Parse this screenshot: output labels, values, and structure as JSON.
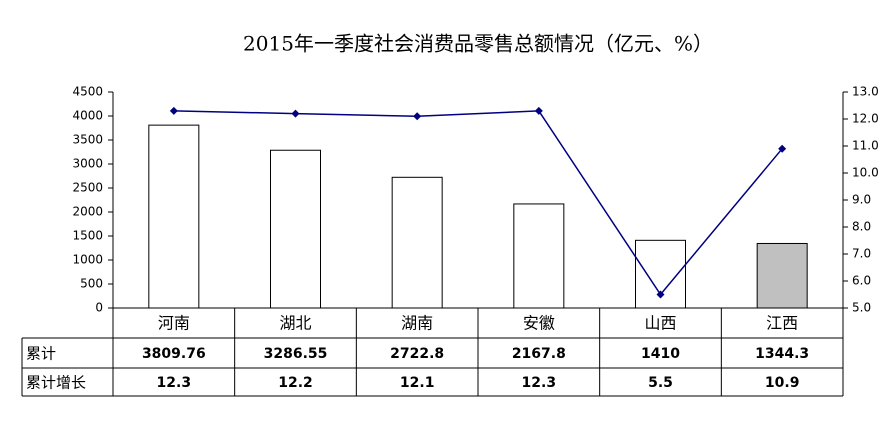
{
  "chart_data": {
    "type": "bar_line_table",
    "title": "2015年一季度社会消费品零售总额情况（亿元、%）",
    "categories": [
      "河南",
      "湖北",
      "湖南",
      "安徽",
      "山西",
      "江西"
    ],
    "series": [
      {
        "name": "累计",
        "type": "bar",
        "color": "#ffffff",
        "colors": [
          "#ffffff",
          "#ffffff",
          "#ffffff",
          "#ffffff",
          "#ffffff",
          "#c0c0c0"
        ],
        "values": [
          3809.76,
          3286.55,
          2722.8,
          2167.8,
          1410,
          1344.3
        ]
      },
      {
        "name": "累计增长",
        "type": "line",
        "axis": "y2",
        "color": "#000080",
        "values": [
          12.3,
          12.2,
          12.1,
          12.3,
          5.5,
          10.9
        ]
      }
    ],
    "ylim": [
      0,
      4500
    ],
    "yticks": [
      0,
      500,
      1000,
      1500,
      2000,
      2500,
      3000,
      3500,
      4000,
      4500
    ],
    "y2lim": [
      5,
      13
    ],
    "y2ticks": [
      {
        "value": 5,
        "label": "5.0"
      },
      {
        "value": 6,
        "label": "6.0"
      },
      {
        "value": 7,
        "label": "7.0"
      },
      {
        "value": 8,
        "label": "8.0"
      },
      {
        "value": 9,
        "label": "9.0"
      },
      {
        "value": 10,
        "label": "10.0"
      },
      {
        "value": 11,
        "label": "11.0"
      },
      {
        "value": 12,
        "label": "12.0"
      },
      {
        "value": 13,
        "label": "13.0"
      }
    ],
    "grid": false
  }
}
